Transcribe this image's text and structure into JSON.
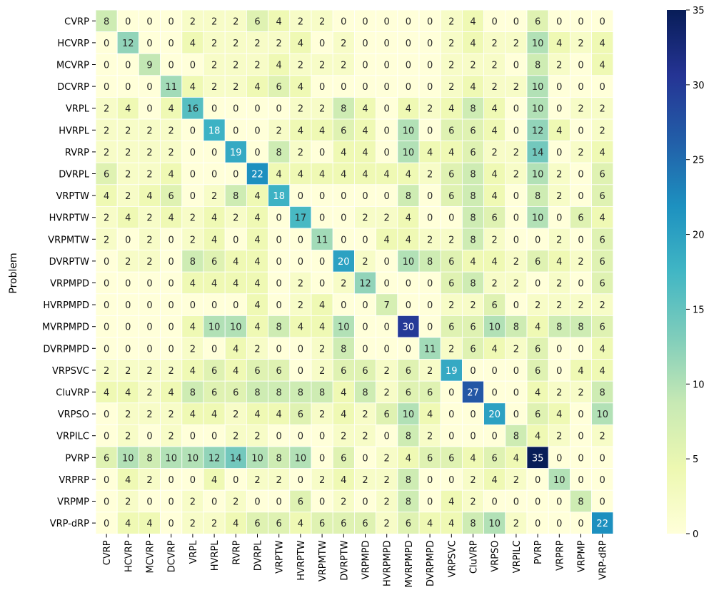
{
  "chart_data": {
    "type": "heatmap",
    "title": "",
    "xlabel": "",
    "ylabel": "Problem",
    "rows": [
      "CVRP",
      "HCVRP",
      "MCVRP",
      "DCVRP",
      "VRPL",
      "HVRPL",
      "RVRP",
      "DVRPL",
      "VRPTW",
      "HVRPTW",
      "VRPMTW",
      "DVRPTW",
      "VRPMPD",
      "HVRPMPD",
      "MVRPMPD",
      "DVRPMPD",
      "VRPSVC",
      "CluVRP",
      "VRPSO",
      "VRPILC",
      "PVRP",
      "VRPRP",
      "VRPMP",
      "VRP-dRP"
    ],
    "columns": [
      "CVRP",
      "HCVRP",
      "MCVRP",
      "DCVRP",
      "VRPL",
      "HVRPL",
      "RVRP",
      "DVRPL",
      "VRPTW",
      "HVRPTW",
      "VRPMTW",
      "DVRPTW",
      "VRPMPD",
      "HVRPMPD",
      "MVRPMPD",
      "DVRPMPD",
      "VRPSVC",
      "CluVRP",
      "VRPSO",
      "VRPILC",
      "PVRP",
      "VRPRP",
      "VRPMP",
      "VRP-dRP"
    ],
    "values": [
      [
        8,
        0,
        0,
        0,
        2,
        2,
        2,
        6,
        4,
        2,
        2,
        0,
        0,
        0,
        0,
        0,
        2,
        4,
        0,
        0,
        6,
        0,
        0,
        0
      ],
      [
        0,
        12,
        0,
        0,
        4,
        2,
        2,
        2,
        2,
        4,
        0,
        2,
        0,
        0,
        0,
        0,
        2,
        4,
        2,
        2,
        10,
        4,
        2,
        4
      ],
      [
        0,
        0,
        9,
        0,
        0,
        2,
        2,
        2,
        4,
        2,
        2,
        2,
        0,
        0,
        0,
        0,
        2,
        2,
        2,
        0,
        8,
        2,
        0,
        4
      ],
      [
        0,
        0,
        0,
        11,
        4,
        2,
        2,
        4,
        6,
        4,
        0,
        0,
        0,
        0,
        0,
        0,
        2,
        4,
        2,
        2,
        10,
        0,
        0,
        0
      ],
      [
        2,
        4,
        0,
        4,
        16,
        0,
        0,
        0,
        0,
        2,
        2,
        8,
        4,
        0,
        4,
        2,
        4,
        8,
        4,
        0,
        10,
        0,
        2,
        2
      ],
      [
        2,
        2,
        2,
        2,
        0,
        18,
        0,
        0,
        2,
        4,
        4,
        6,
        4,
        0,
        10,
        0,
        6,
        6,
        4,
        0,
        12,
        4,
        0,
        2
      ],
      [
        2,
        2,
        2,
        2,
        0,
        0,
        19,
        0,
        8,
        2,
        0,
        4,
        4,
        0,
        10,
        4,
        4,
        6,
        2,
        2,
        14,
        0,
        2,
        4
      ],
      [
        6,
        2,
        2,
        4,
        0,
        0,
        0,
        22,
        4,
        4,
        4,
        4,
        4,
        4,
        4,
        2,
        6,
        8,
        4,
        2,
        10,
        2,
        0,
        6
      ],
      [
        4,
        2,
        4,
        6,
        0,
        2,
        8,
        4,
        18,
        0,
        0,
        0,
        0,
        0,
        8,
        0,
        6,
        8,
        4,
        0,
        8,
        2,
        0,
        6
      ],
      [
        2,
        4,
        2,
        4,
        2,
        4,
        2,
        4,
        0,
        17,
        0,
        0,
        2,
        2,
        4,
        0,
        0,
        8,
        6,
        0,
        10,
        0,
        6,
        4
      ],
      [
        2,
        0,
        2,
        0,
        2,
        4,
        0,
        4,
        0,
        0,
        11,
        0,
        0,
        4,
        4,
        2,
        2,
        8,
        2,
        0,
        0,
        2,
        0,
        6
      ],
      [
        0,
        2,
        2,
        0,
        8,
        6,
        4,
        4,
        0,
        0,
        0,
        20,
        2,
        0,
        10,
        8,
        6,
        4,
        4,
        2,
        6,
        4,
        2,
        6
      ],
      [
        0,
        0,
        0,
        0,
        4,
        4,
        4,
        4,
        0,
        2,
        0,
        2,
        12,
        0,
        0,
        0,
        6,
        8,
        2,
        2,
        0,
        2,
        0,
        6
      ],
      [
        0,
        0,
        0,
        0,
        0,
        0,
        0,
        4,
        0,
        2,
        4,
        0,
        0,
        7,
        0,
        0,
        2,
        2,
        6,
        0,
        2,
        2,
        2,
        2
      ],
      [
        0,
        0,
        0,
        0,
        4,
        10,
        10,
        4,
        8,
        4,
        4,
        10,
        0,
        0,
        30,
        0,
        6,
        6,
        10,
        8,
        4,
        8,
        8,
        6
      ],
      [
        0,
        0,
        0,
        0,
        2,
        0,
        4,
        2,
        0,
        0,
        2,
        8,
        0,
        0,
        0,
        11,
        2,
        6,
        4,
        2,
        6,
        0,
        0,
        4
      ],
      [
        2,
        2,
        2,
        2,
        4,
        6,
        4,
        6,
        6,
        0,
        2,
        6,
        6,
        2,
        6,
        2,
        19,
        0,
        0,
        0,
        6,
        0,
        4,
        4
      ],
      [
        4,
        4,
        2,
        4,
        8,
        6,
        6,
        8,
        8,
        8,
        8,
        4,
        8,
        2,
        6,
        6,
        0,
        27,
        0,
        0,
        4,
        2,
        2,
        8
      ],
      [
        0,
        2,
        2,
        2,
        4,
        4,
        2,
        4,
        4,
        6,
        2,
        4,
        2,
        6,
        10,
        4,
        0,
        0,
        20,
        0,
        6,
        4,
        0,
        10
      ],
      [
        0,
        2,
        0,
        2,
        0,
        0,
        2,
        2,
        0,
        0,
        0,
        2,
        2,
        0,
        8,
        2,
        0,
        0,
        0,
        8,
        4,
        2,
        0,
        2
      ],
      [
        6,
        10,
        8,
        10,
        10,
        12,
        14,
        10,
        8,
        10,
        0,
        6,
        0,
        2,
        4,
        6,
        6,
        4,
        6,
        4,
        35,
        0,
        0,
        0
      ],
      [
        0,
        4,
        2,
        0,
        0,
        4,
        0,
        2,
        2,
        0,
        2,
        4,
        2,
        2,
        8,
        0,
        0,
        2,
        4,
        2,
        0,
        10,
        0,
        0
      ],
      [
        0,
        2,
        0,
        0,
        2,
        0,
        2,
        0,
        0,
        6,
        0,
        2,
        0,
        2,
        8,
        0,
        4,
        2,
        0,
        0,
        0,
        0,
        8,
        0
      ],
      [
        0,
        4,
        4,
        0,
        2,
        2,
        4,
        6,
        6,
        4,
        6,
        6,
        6,
        2,
        6,
        4,
        4,
        8,
        10,
        2,
        0,
        0,
        0,
        22
      ]
    ],
    "vmin": 0,
    "vmax": 35,
    "colormap": "YlGnBu",
    "colorbar_ticks": [
      0,
      5,
      10,
      15,
      20,
      25,
      30,
      35
    ],
    "annotations": true
  }
}
